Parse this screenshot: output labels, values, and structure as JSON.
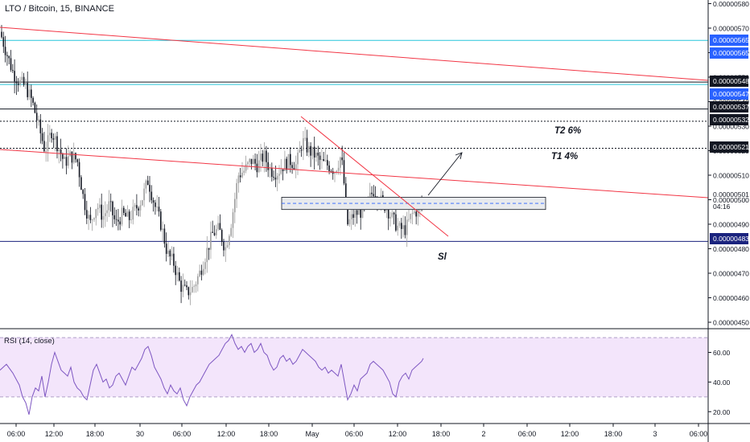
{
  "header": {
    "title": "LTO / Bitcoin, 15, BINANCE"
  },
  "rsi": {
    "title": "RSI (14, close)",
    "ticks": [
      "60.00",
      "40.00",
      "20.00"
    ],
    "levels": [
      70,
      30
    ],
    "ylim": [
      12,
      76
    ]
  },
  "notes": {
    "t2": "T2 6%",
    "t1": "T1 4%",
    "sl": "Sl"
  },
  "colors": {
    "up": "#9e9e9e",
    "down": "#131722",
    "trend": "#f23645",
    "rsi_line": "#7e57c2",
    "rsi_fill": "#f3e5fb",
    "blue_line": "#2962ff",
    "cyan_line": "#26c6da"
  },
  "chart_data": {
    "type": "candlestick",
    "ylim": [
      4.45e-06,
      5.82e-06
    ],
    "y_ticks": [
      "0.00000580",
      "0.00000570",
      "0.00000560",
      "0.00000550",
      "0.00000540",
      "0.00000530",
      "0.00000520",
      "0.00000510",
      "0.00000500",
      "0.00000490",
      "0.00000480",
      "0.00000470",
      "0.00000460",
      "0.00000450"
    ],
    "x_ticks": [
      "06:00",
      "12:00",
      "18:00",
      "30",
      "06:00",
      "12:00",
      "18:00",
      "May",
      "06:00",
      "12:00",
      "18:00",
      "2",
      "06:00",
      "12:00",
      "18:00",
      "3",
      "06:00"
    ],
    "price_labels": [
      {
        "text": "0.00000565",
        "style": "blue"
      },
      {
        "text": "0.00000565",
        "style": "blue"
      },
      {
        "text": "0.00000548",
        "style": "black"
      },
      {
        "text": "0.00000547",
        "style": "blue"
      },
      {
        "text": "0.00000537",
        "style": "black"
      },
      {
        "text": "0.00000532",
        "style": "black"
      },
      {
        "text": "0.00000521",
        "style": "black"
      },
      {
        "text": "0.00000501",
        "style": "plain"
      },
      {
        "text": "04:16",
        "style": "plain"
      },
      {
        "text": "0.00000483",
        "style": "navy"
      }
    ],
    "horizontal_levels": [
      5.65e-06,
      5.48e-06,
      5.47e-06,
      5.37e-06,
      5.32e-06,
      5.21e-06,
      4.83e-06
    ],
    "close_path": [
      [
        0,
        5.685e-06
      ],
      [
        8,
        5.6e-06
      ],
      [
        16,
        5.52e-06
      ],
      [
        24,
        5.48e-06
      ],
      [
        32,
        5.46e-06
      ],
      [
        40,
        5.4e-06
      ],
      [
        48,
        5.3e-06
      ],
      [
        56,
        5.2e-06
      ],
      [
        64,
        5.28e-06
      ],
      [
        72,
        5.22e-06
      ],
      [
        80,
        5.15e-06
      ],
      [
        88,
        5.18e-06
      ],
      [
        96,
        5.16e-06
      ],
      [
        104,
        5e-06
      ],
      [
        112,
        4.9e-06
      ],
      [
        120,
        4.98e-06
      ],
      [
        128,
        4.93e-06
      ],
      [
        136,
        4.98e-06
      ],
      [
        144,
        4.9e-06
      ],
      [
        152,
        4.94e-06
      ],
      [
        160,
        4.92e-06
      ],
      [
        168,
        4.96e-06
      ],
      [
        176,
        5e-06
      ],
      [
        184,
        5.08e-06
      ],
      [
        192,
        4.98e-06
      ],
      [
        200,
        4.9e-06
      ],
      [
        208,
        4.78e-06
      ],
      [
        216,
        4.74e-06
      ],
      [
        224,
        4.65e-06
      ],
      [
        232,
        4.62e-06
      ],
      [
        240,
        4.64e-06
      ],
      [
        248,
        4.7e-06
      ],
      [
        256,
        4.78e-06
      ],
      [
        264,
        4.86e-06
      ],
      [
        272,
        4.88e-06
      ],
      [
        280,
        4.8e-06
      ],
      [
        288,
        4.92e-06
      ],
      [
        296,
        5.1e-06
      ],
      [
        304,
        5.12e-06
      ],
      [
        312,
        5.16e-06
      ],
      [
        320,
        5.14e-06
      ],
      [
        328,
        5.18e-06
      ],
      [
        336,
        5.12e-06
      ],
      [
        344,
        5.11e-06
      ],
      [
        352,
        5.14e-06
      ],
      [
        360,
        5.16e-06
      ],
      [
        368,
        5.14e-06
      ],
      [
        376,
        5.24e-06
      ],
      [
        384,
        5.2e-06
      ],
      [
        392,
        5.18e-06
      ],
      [
        400,
        5.15e-06
      ],
      [
        408,
        5.14e-06
      ],
      [
        416,
        5.12e-06
      ],
      [
        424,
        5.18e-06
      ],
      [
        428,
        5.05e-06
      ],
      [
        432,
        4.9e-06
      ],
      [
        440,
        4.94e-06
      ],
      [
        448,
        4.95e-06
      ],
      [
        456,
        4.98e-06
      ],
      [
        464,
        5.04e-06
      ],
      [
        472,
        5e-06
      ],
      [
        480,
        4.97e-06
      ],
      [
        488,
        4.92e-06
      ],
      [
        496,
        4.88e-06
      ],
      [
        504,
        4.88e-06
      ],
      [
        512,
        4.94e-06
      ],
      [
        520,
        4.96e-06
      ],
      [
        526,
        4.98e-06
      ]
    ],
    "rsi_values": [
      [
        0,
        48
      ],
      [
        8,
        52
      ],
      [
        16,
        46
      ],
      [
        20,
        42
      ],
      [
        24,
        38
      ],
      [
        28,
        30
      ],
      [
        32,
        26
      ],
      [
        36,
        18
      ],
      [
        40,
        30
      ],
      [
        44,
        36
      ],
      [
        48,
        34
      ],
      [
        52,
        44
      ],
      [
        56,
        30
      ],
      [
        60,
        40
      ],
      [
        64,
        52
      ],
      [
        68,
        60
      ],
      [
        72,
        54
      ],
      [
        76,
        48
      ],
      [
        80,
        46
      ],
      [
        84,
        44
      ],
      [
        88,
        50
      ],
      [
        92,
        40
      ],
      [
        96,
        36
      ],
      [
        100,
        34
      ],
      [
        104,
        30
      ],
      [
        108,
        28
      ],
      [
        112,
        38
      ],
      [
        116,
        48
      ],
      [
        120,
        52
      ],
      [
        124,
        46
      ],
      [
        128,
        40
      ],
      [
        132,
        42
      ],
      [
        136,
        36
      ],
      [
        140,
        38
      ],
      [
        144,
        44
      ],
      [
        148,
        46
      ],
      [
        152,
        42
      ],
      [
        156,
        38
      ],
      [
        160,
        44
      ],
      [
        164,
        50
      ],
      [
        168,
        48
      ],
      [
        172,
        52
      ],
      [
        176,
        56
      ],
      [
        180,
        62
      ],
      [
        184,
        64
      ],
      [
        188,
        58
      ],
      [
        192,
        50
      ],
      [
        196,
        46
      ],
      [
        200,
        42
      ],
      [
        204,
        36
      ],
      [
        208,
        32
      ],
      [
        212,
        38
      ],
      [
        216,
        34
      ],
      [
        220,
        32
      ],
      [
        224,
        36
      ],
      [
        228,
        28
      ],
      [
        232,
        24
      ],
      [
        236,
        30
      ],
      [
        240,
        34
      ],
      [
        244,
        38
      ],
      [
        248,
        40
      ],
      [
        252,
        44
      ],
      [
        256,
        48
      ],
      [
        260,
        52
      ],
      [
        264,
        54
      ],
      [
        268,
        56
      ],
      [
        272,
        58
      ],
      [
        276,
        62
      ],
      [
        280,
        66
      ],
      [
        284,
        68
      ],
      [
        288,
        72
      ],
      [
        292,
        66
      ],
      [
        296,
        62
      ],
      [
        300,
        64
      ],
      [
        304,
        60
      ],
      [
        308,
        64
      ],
      [
        312,
        66
      ],
      [
        316,
        60
      ],
      [
        320,
        62
      ],
      [
        324,
        66
      ],
      [
        328,
        60
      ],
      [
        332,
        58
      ],
      [
        336,
        52
      ],
      [
        340,
        48
      ],
      [
        344,
        50
      ],
      [
        348,
        56
      ],
      [
        352,
        58
      ],
      [
        356,
        54
      ],
      [
        360,
        56
      ],
      [
        364,
        52
      ],
      [
        368,
        54
      ],
      [
        372,
        58
      ],
      [
        376,
        62
      ],
      [
        380,
        60
      ],
      [
        384,
        58
      ],
      [
        388,
        56
      ],
      [
        392,
        54
      ],
      [
        396,
        50
      ],
      [
        400,
        48
      ],
      [
        404,
        50
      ],
      [
        408,
        46
      ],
      [
        412,
        48
      ],
      [
        416,
        46
      ],
      [
        420,
        44
      ],
      [
        424,
        52
      ],
      [
        428,
        40
      ],
      [
        432,
        28
      ],
      [
        436,
        32
      ],
      [
        440,
        38
      ],
      [
        444,
        34
      ],
      [
        448,
        42
      ],
      [
        452,
        44
      ],
      [
        456,
        46
      ],
      [
        460,
        52
      ],
      [
        464,
        54
      ],
      [
        468,
        52
      ],
      [
        472,
        50
      ],
      [
        476,
        48
      ],
      [
        480,
        44
      ],
      [
        484,
        40
      ],
      [
        488,
        32
      ],
      [
        492,
        30
      ],
      [
        496,
        40
      ],
      [
        500,
        44
      ],
      [
        504,
        46
      ],
      [
        508,
        42
      ],
      [
        512,
        48
      ],
      [
        516,
        50
      ],
      [
        520,
        52
      ],
      [
        524,
        54
      ],
      [
        526,
        56
      ]
    ]
  }
}
